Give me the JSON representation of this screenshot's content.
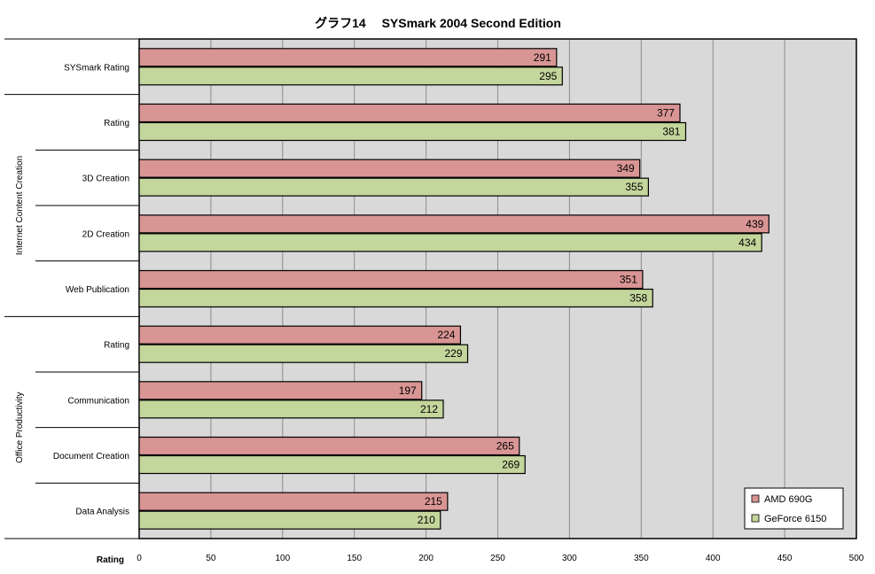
{
  "chart_data": {
    "type": "bar",
    "orientation": "horizontal",
    "title": "グラフ14　 SYSmark 2004 Second Edition",
    "xlabel": "Rating",
    "xlim": [
      0,
      500
    ],
    "xticks": [
      "0",
      "50",
      "100",
      "150",
      "200",
      "250",
      "300",
      "350",
      "400",
      "450",
      "500"
    ],
    "grid": true,
    "legend_position": "bottom-right",
    "categories": [
      {
        "group": "",
        "label": "SYSmark Rating"
      },
      {
        "group": "Internet Content Creation",
        "label": "Rating"
      },
      {
        "group": "Internet Content Creation",
        "label": "3D Creation"
      },
      {
        "group": "Internet Content Creation",
        "label": "2D Creation"
      },
      {
        "group": "Internet Content Creation",
        "label": "Web Publication"
      },
      {
        "group": "Office Productivity",
        "label": "Rating"
      },
      {
        "group": "Office Productivity",
        "label": "Communication"
      },
      {
        "group": "Office Productivity",
        "label": "Document Creation"
      },
      {
        "group": "Office Productivity",
        "label": "Data Analysis"
      }
    ],
    "groups": [
      "Internet Content Creation",
      "Office Productivity"
    ],
    "series": [
      {
        "name": "AMD 690G",
        "color": "#d99594",
        "values": [
          291,
          377,
          349,
          439,
          351,
          224,
          197,
          265,
          215
        ]
      },
      {
        "name": "GeForce 6150",
        "color": "#c3d69b",
        "values": [
          295,
          381,
          355,
          434,
          358,
          229,
          212,
          269,
          210
        ]
      }
    ]
  }
}
